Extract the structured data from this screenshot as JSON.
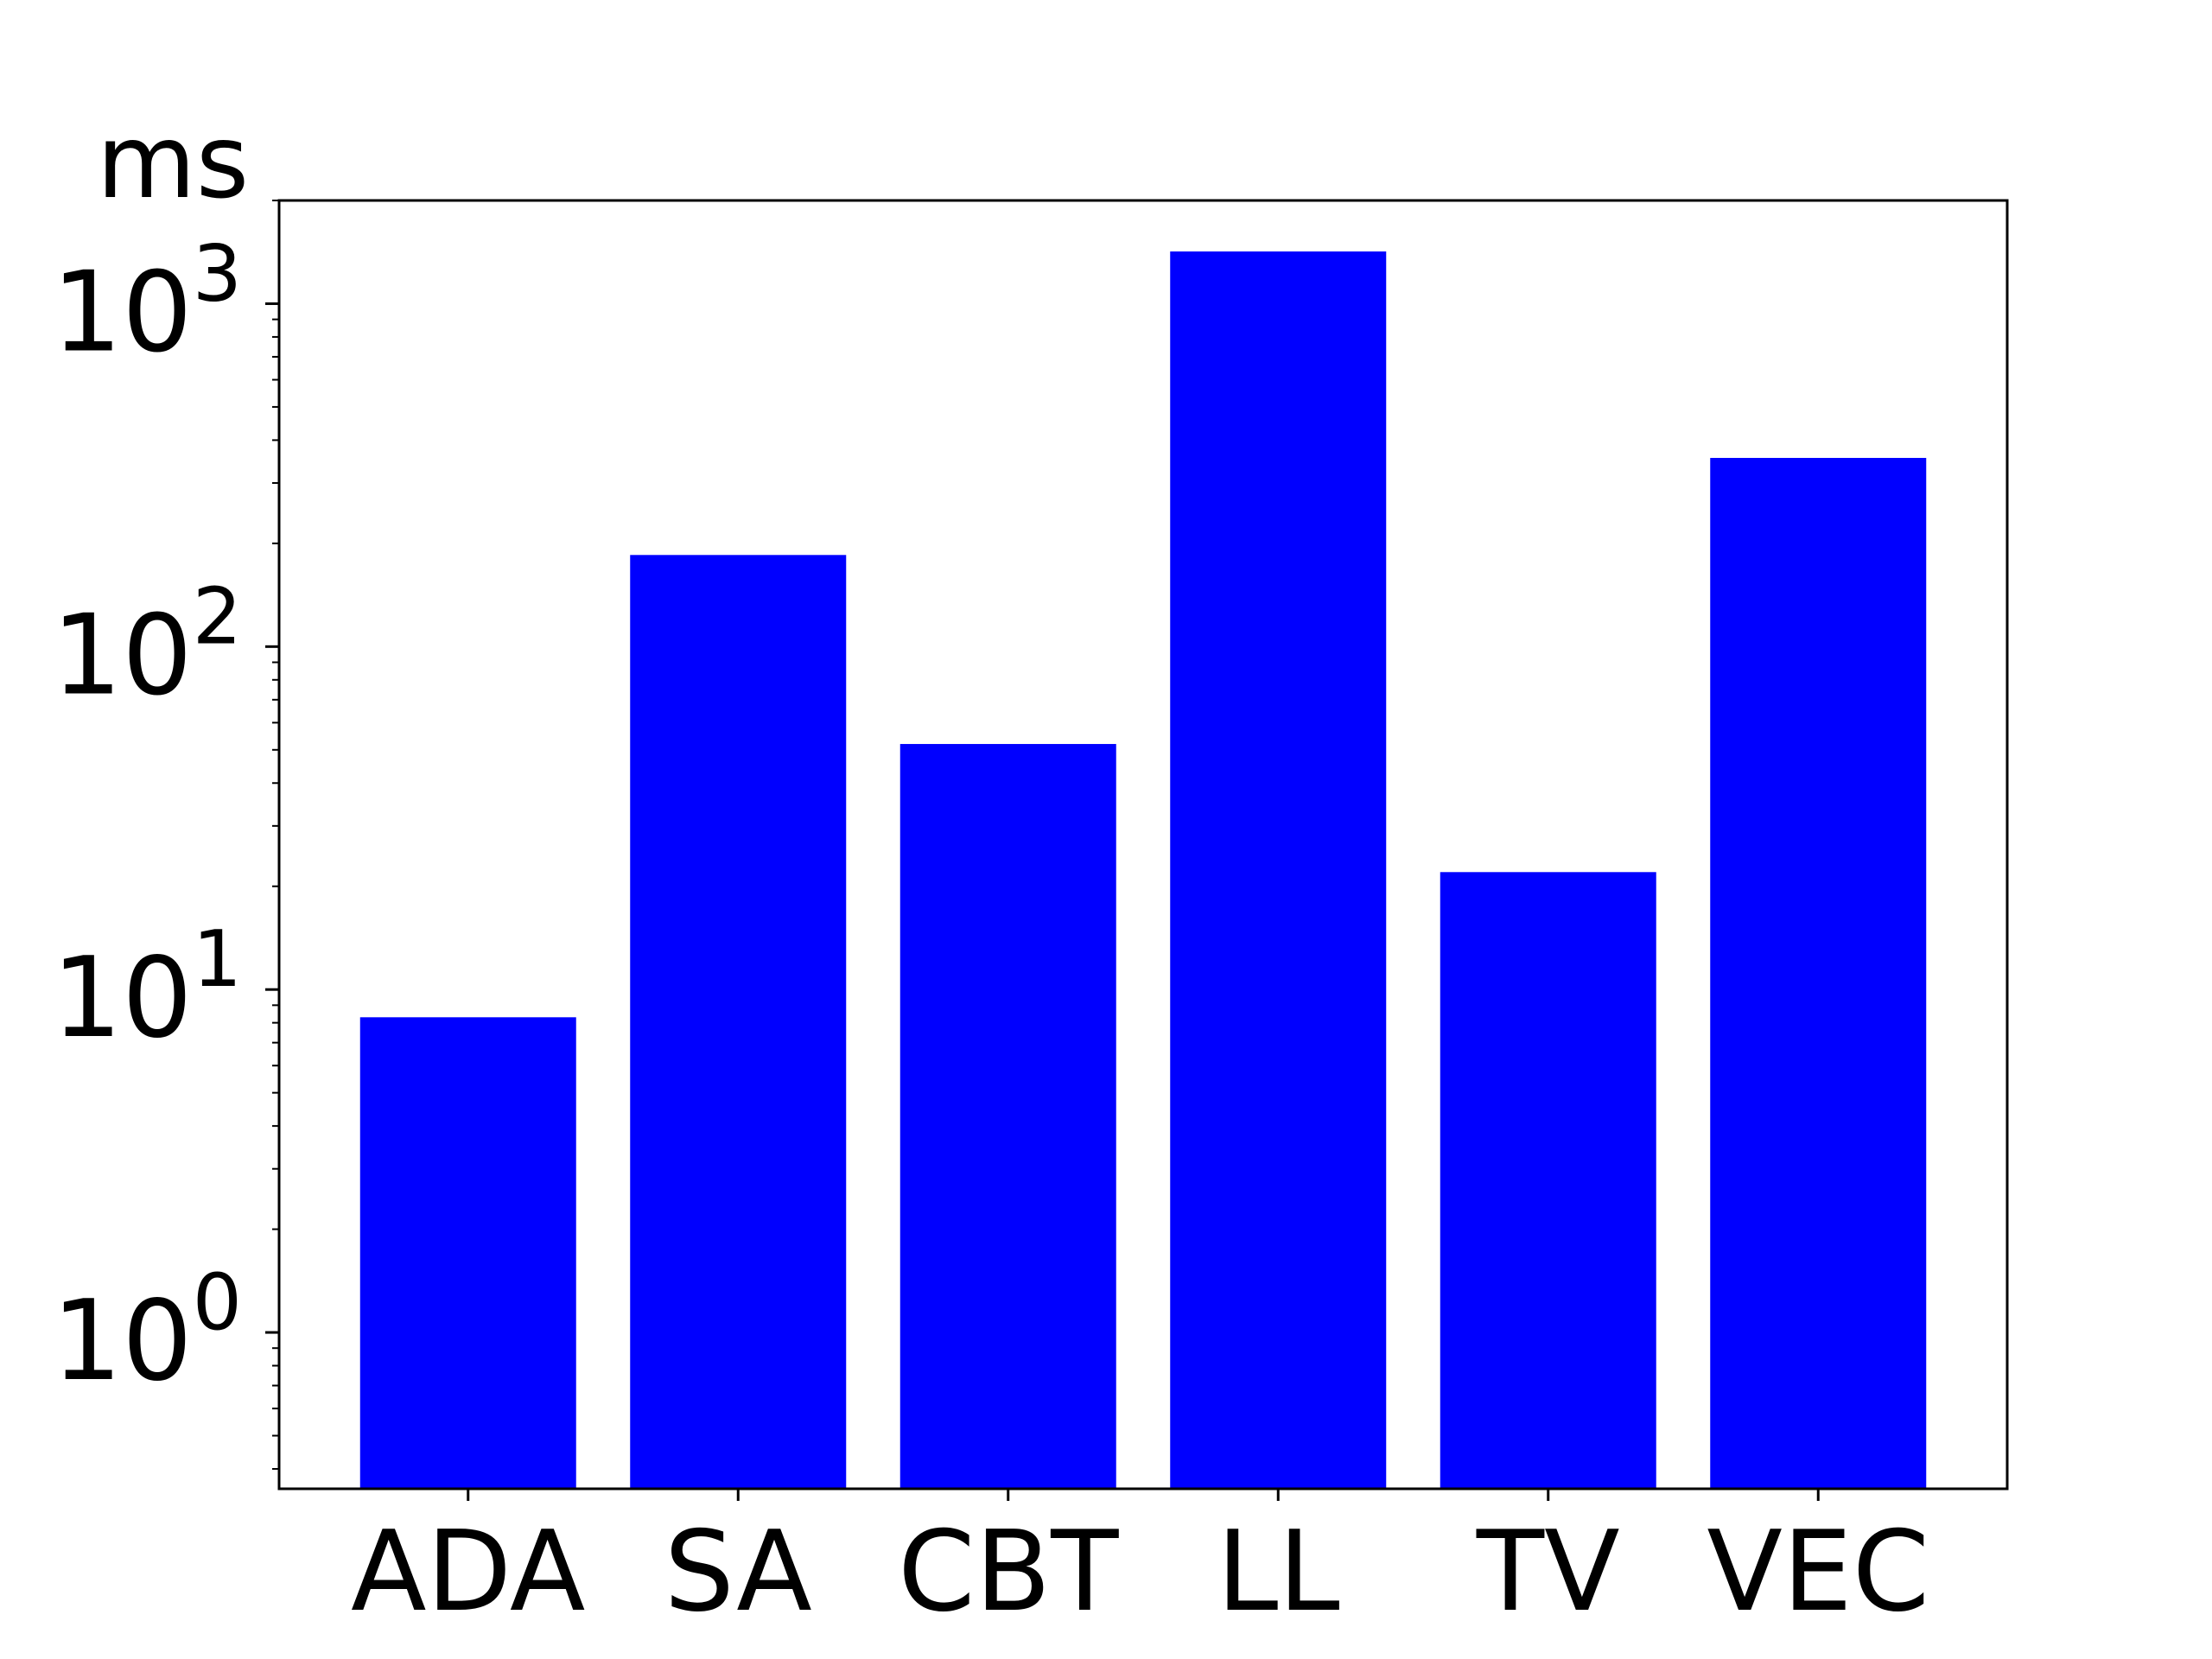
{
  "chart_data": {
    "type": "bar",
    "title": "",
    "xlabel": "",
    "ylabel": "ms",
    "y_scale": "log",
    "ylim": [
      0.35,
      2000
    ],
    "categories": [
      "ADA",
      "SA",
      "CBT",
      "LL",
      "TV",
      "VEC"
    ],
    "values": [
      8.3,
      185,
      52,
      1420,
      22,
      355
    ],
    "y_ticks": [
      1,
      10,
      100,
      1000
    ],
    "y_tick_labels": [
      {
        "base": "10",
        "exp": "0"
      },
      {
        "base": "10",
        "exp": "1"
      },
      {
        "base": "10",
        "exp": "2"
      },
      {
        "base": "10",
        "exp": "3"
      }
    ],
    "grid": false,
    "legend": "none",
    "bar_color": "#0000ff"
  }
}
